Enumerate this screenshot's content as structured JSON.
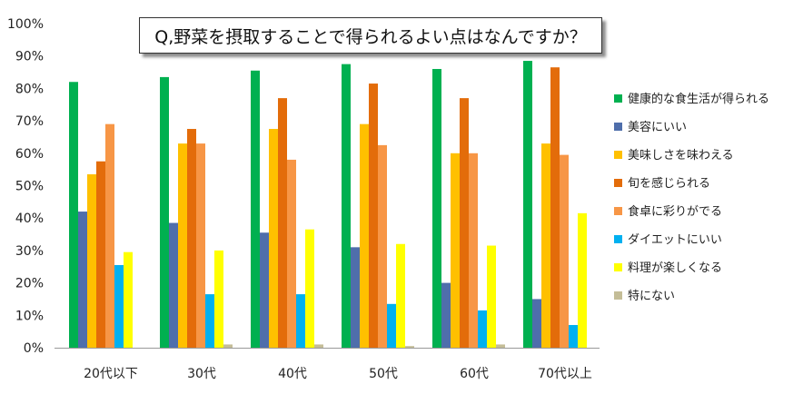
{
  "chart_data": {
    "type": "bar",
    "title": "Q,野菜を摂取することで得られるよい点はなんですか？",
    "xlabel": "",
    "ylabel": "",
    "ylim": [
      0,
      100
    ],
    "yticks": [
      "0%",
      "10%",
      "20%",
      "30%",
      "40%",
      "50%",
      "60%",
      "70%",
      "80%",
      "90%",
      "100%"
    ],
    "grid": false,
    "legend_position": "right",
    "categories": [
      "20代以下",
      "30代",
      "40代",
      "50代",
      "60代",
      "70代以上"
    ],
    "series": [
      {
        "name": "健康的な食生活が得られる",
        "color": "#00B050",
        "values": [
          82,
          83.5,
          85.5,
          87.5,
          86,
          88.5
        ]
      },
      {
        "name": "美容にいい",
        "color": "#4F6EAB",
        "values": [
          42,
          38.5,
          35.5,
          31,
          20,
          15
        ]
      },
      {
        "name": "美味しさを味わえる",
        "color": "#FFC000",
        "values": [
          53.5,
          63,
          67.5,
          69,
          60,
          63
        ]
      },
      {
        "name": "旬を感じられる",
        "color": "#E36C0A",
        "values": [
          57.5,
          67.5,
          77,
          81.5,
          77,
          86.5
        ]
      },
      {
        "name": "食卓に彩りがでる",
        "color": "#F79646",
        "values": [
          69,
          63,
          58,
          62.5,
          60,
          59.5
        ]
      },
      {
        "name": "ダイエットにいい",
        "color": "#00B0F0",
        "values": [
          25.5,
          16.5,
          16.5,
          13.5,
          11.5,
          7
        ]
      },
      {
        "name": "料理が楽しくなる",
        "color": "#FFFF00",
        "values": [
          29.5,
          30,
          36.5,
          32,
          31.5,
          41.5
        ]
      },
      {
        "name": "特にない",
        "color": "#C4BD97",
        "values": [
          0,
          1,
          1,
          0.5,
          1,
          0
        ]
      }
    ]
  }
}
